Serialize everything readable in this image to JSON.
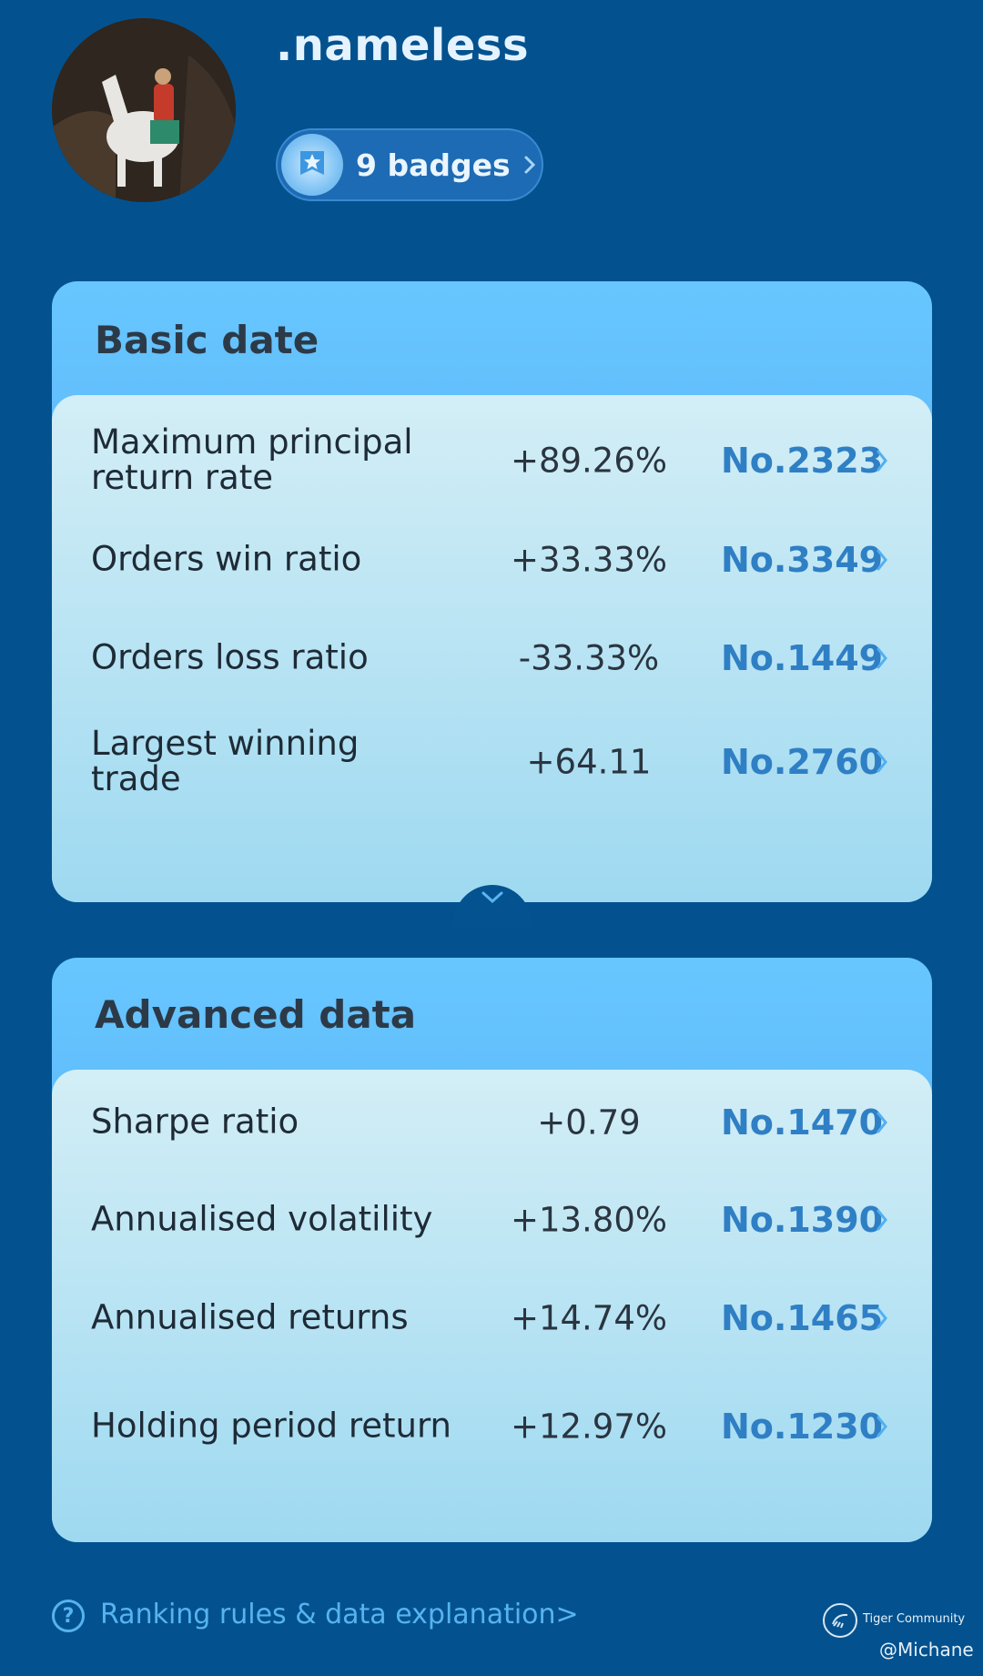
{
  "profile": {
    "username": ".nameless",
    "badges_label": "9 badges"
  },
  "basic": {
    "title": "Basic date",
    "rows": [
      {
        "label": "Maximum principal return rate",
        "value": "+89.26%",
        "rank": "No.2323"
      },
      {
        "label": "Orders win ratio",
        "value": "+33.33%",
        "rank": "No.3349"
      },
      {
        "label": "Orders loss ratio",
        "value": "-33.33%",
        "rank": "No.1449"
      },
      {
        "label": "Largest winning trade",
        "value": "+64.11",
        "rank": "No.2760"
      }
    ]
  },
  "advanced": {
    "title": "Advanced data",
    "rows": [
      {
        "label": "Sharpe ratio",
        "value": "+0.79",
        "rank": "No.1470"
      },
      {
        "label": "Annualised volatility",
        "value": "+13.80%",
        "rank": "No.1390"
      },
      {
        "label": "Annualised returns",
        "value": "+14.74%",
        "rank": "No.1465"
      },
      {
        "label": "Holding period return",
        "value": "+12.97%",
        "rank": "No.1230"
      }
    ]
  },
  "footer": {
    "help_icon": "?",
    "link_text": "Ranking rules & data explanation>",
    "brand": "Tiger Community",
    "watermark": "@Michane"
  },
  "icons": {
    "badge": "star-medal-icon",
    "row_arrow": "chevron-right-icon",
    "expand": "chevron-down-icon",
    "brand_logo": "tiger-logo-icon"
  },
  "colors": {
    "background": "#03528f",
    "accent": "#56b3f0",
    "rank": "#2f7fc5"
  }
}
